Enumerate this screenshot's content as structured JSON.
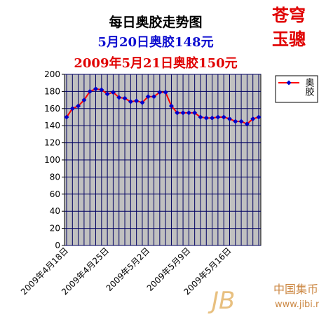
{
  "chart_data": {
    "type": "line",
    "title": "每日奥胶走势图",
    "subtitles": [
      "5月20日奥胶148元",
      "2009年5月21日奥胶150元"
    ],
    "categories": [
      "2009年4月18日",
      null,
      null,
      null,
      null,
      null,
      null,
      "2009年4月25日",
      null,
      null,
      null,
      null,
      null,
      null,
      "2009年5月2日",
      null,
      null,
      null,
      null,
      null,
      null,
      "2009年5月9日",
      null,
      null,
      null,
      null,
      null,
      null,
      "2009年5月16日",
      null,
      null,
      null,
      null,
      null
    ],
    "series": [
      {
        "name": "奥胶",
        "color": "#ff0000",
        "marker_color": "#0000cc",
        "values": [
          150,
          160,
          163,
          170,
          180,
          183,
          182,
          177,
          179,
          173,
          172,
          168,
          169,
          167,
          174,
          174,
          179,
          179,
          163,
          155,
          155,
          155,
          155,
          150,
          149,
          149,
          150,
          150,
          148,
          145,
          145,
          142,
          148,
          150
        ]
      }
    ],
    "ylim": [
      0,
      200
    ],
    "yticks": [
      0,
      20,
      40,
      60,
      80,
      100,
      120,
      140,
      160,
      180,
      200
    ],
    "grid": true,
    "legend": "right"
  },
  "logo": [
    "苍穹",
    "玉骢"
  ],
  "watermark": {
    "name": "中国集币在线",
    "url": "www.jibi.net"
  }
}
